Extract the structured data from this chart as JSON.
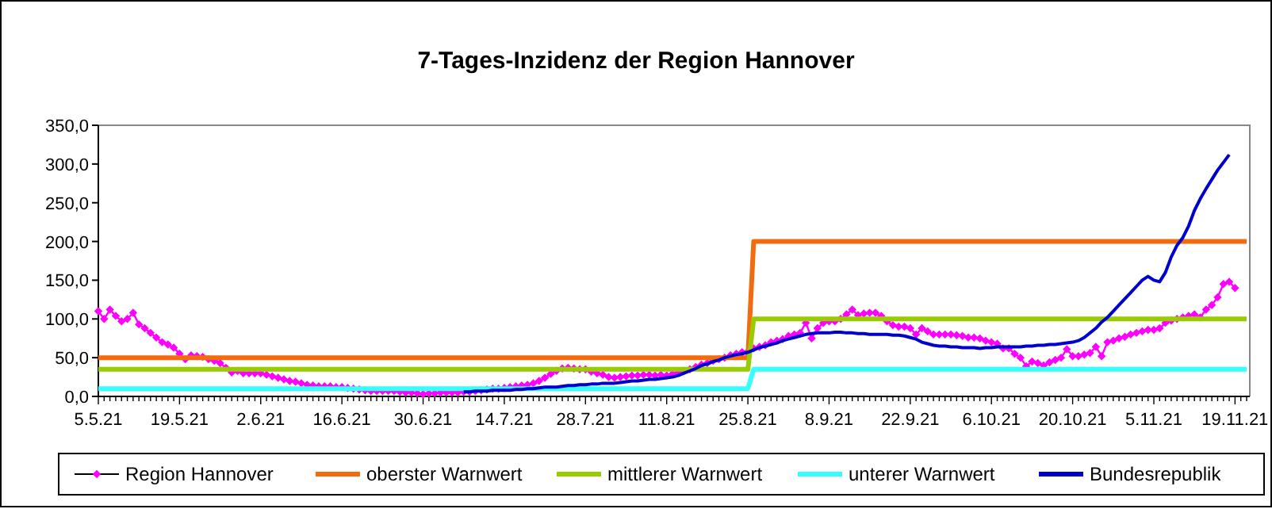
{
  "chart_data": {
    "type": "line",
    "title": "7-Tages-Inzidenz der Region Hannover",
    "categories": [
      "5.5.21",
      null,
      null,
      null,
      null,
      null,
      null,
      null,
      null,
      null,
      null,
      null,
      null,
      null,
      "19.5.21",
      null,
      null,
      null,
      null,
      null,
      null,
      null,
      null,
      null,
      null,
      null,
      null,
      null,
      "2.6.21",
      null,
      null,
      null,
      null,
      null,
      null,
      null,
      null,
      null,
      null,
      null,
      null,
      null,
      "16.6.21",
      null,
      null,
      null,
      null,
      null,
      null,
      null,
      null,
      null,
      null,
      null,
      null,
      null,
      "30.6.21",
      null,
      null,
      null,
      null,
      null,
      null,
      null,
      null,
      null,
      null,
      null,
      null,
      null,
      "14.7.21",
      null,
      null,
      null,
      null,
      null,
      null,
      null,
      null,
      null,
      null,
      null,
      null,
      null,
      "28.7.21",
      null,
      null,
      null,
      null,
      null,
      null,
      null,
      null,
      null,
      null,
      null,
      null,
      null,
      "11.8.21",
      null,
      null,
      null,
      null,
      null,
      null,
      null,
      null,
      null,
      null,
      null,
      null,
      null,
      "25.8.21",
      null,
      null,
      null,
      null,
      null,
      null,
      null,
      null,
      null,
      null,
      null,
      null,
      null,
      "8.9.21",
      null,
      null,
      null,
      null,
      null,
      null,
      null,
      null,
      null,
      null,
      null,
      null,
      null,
      "22.9.21",
      null,
      null,
      null,
      null,
      null,
      null,
      null,
      null,
      null,
      null,
      null,
      null,
      null,
      "6.10.21",
      null,
      null,
      null,
      null,
      null,
      null,
      null,
      null,
      null,
      null,
      null,
      null,
      null,
      "20.10.21",
      null,
      null,
      null,
      null,
      null,
      null,
      null,
      null,
      null,
      null,
      null,
      null,
      null,
      "5.11.21",
      null,
      null,
      null,
      null,
      null,
      null,
      null,
      null,
      null,
      null,
      null,
      null,
      null,
      "19.11.21",
      null,
      null
    ],
    "ylim": [
      0,
      350
    ],
    "yticks": [
      {
        "value": 0,
        "label": "0,0"
      },
      {
        "value": 50,
        "label": "50,0"
      },
      {
        "value": 100,
        "label": "100,0"
      },
      {
        "value": 150,
        "label": "150,0"
      },
      {
        "value": 200,
        "label": "200,0"
      },
      {
        "value": 250,
        "label": "250,0"
      },
      {
        "value": 300,
        "label": "300,0"
      },
      {
        "value": 350,
        "label": "350,0"
      }
    ],
    "grid": false,
    "legend": "bottom",
    "series": [
      {
        "name": "Region Hannover",
        "color": "#ff00ff",
        "marker": "diamond",
        "values": [
          110,
          100,
          112,
          104,
          97,
          100,
          108,
          93,
          88,
          82,
          76,
          70,
          67,
          63,
          55,
          48,
          53,
          52,
          51,
          48,
          46,
          43,
          37,
          31,
          33,
          30,
          30,
          30,
          30,
          28,
          26,
          24,
          22,
          20,
          19,
          17,
          15,
          14,
          13,
          13,
          13,
          12,
          12,
          11,
          10,
          9,
          8,
          7,
          7,
          7,
          7,
          7,
          6,
          5,
          5,
          4,
          3,
          4,
          4,
          5,
          5,
          5,
          5,
          6,
          6,
          7,
          8,
          9,
          10,
          10,
          11,
          12,
          13,
          14,
          15,
          17,
          20,
          24,
          29,
          33,
          36,
          37,
          36,
          35,
          35,
          32,
          30,
          28,
          25,
          24,
          25,
          26,
          27,
          27,
          28,
          28,
          27,
          28,
          27,
          29,
          31,
          33,
          35,
          38,
          41,
          43,
          46,
          48,
          50,
          53,
          55,
          57,
          58,
          62,
          64,
          66,
          70,
          72,
          74,
          78,
          80,
          82,
          95,
          75,
          88,
          95,
          97,
          97,
          100,
          106,
          112,
          105,
          107,
          108,
          108,
          104,
          97,
          92,
          90,
          90,
          88,
          80,
          88,
          84,
          80,
          80,
          80,
          80,
          79,
          78,
          76,
          76,
          75,
          72,
          70,
          68,
          62,
          62,
          55,
          50,
          39,
          45,
          43,
          40,
          44,
          47,
          50,
          61,
          52,
          52,
          54,
          56,
          64,
          52,
          70,
          72,
          75,
          77,
          80,
          82,
          84,
          86,
          86,
          88,
          95,
          98,
          100,
          102,
          104,
          106,
          102,
          112,
          118,
          128,
          145,
          148,
          140,
          null,
          null
        ]
      },
      {
        "name": "oberster Warnwert",
        "color": "#f26b0f",
        "values": [
          50,
          50,
          50,
          50,
          50,
          50,
          50,
          50,
          50,
          50,
          50,
          50,
          50,
          50,
          50,
          50,
          50,
          50,
          50,
          50,
          50,
          50,
          50,
          50,
          50,
          50,
          50,
          50,
          50,
          50,
          50,
          50,
          50,
          50,
          50,
          50,
          50,
          50,
          50,
          50,
          50,
          50,
          50,
          50,
          50,
          50,
          50,
          50,
          50,
          50,
          50,
          50,
          50,
          50,
          50,
          50,
          50,
          50,
          50,
          50,
          50,
          50,
          50,
          50,
          50,
          50,
          50,
          50,
          50,
          50,
          50,
          50,
          50,
          50,
          50,
          50,
          50,
          50,
          50,
          50,
          50,
          50,
          50,
          50,
          50,
          50,
          50,
          50,
          50,
          50,
          50,
          50,
          50,
          50,
          50,
          50,
          50,
          50,
          50,
          50,
          50,
          50,
          50,
          50,
          50,
          50,
          50,
          50,
          50,
          50,
          50,
          50,
          50,
          200,
          200,
          200,
          200,
          200,
          200,
          200,
          200,
          200,
          200,
          200,
          200,
          200,
          200,
          200,
          200,
          200,
          200,
          200,
          200,
          200,
          200,
          200,
          200,
          200,
          200,
          200,
          200,
          200,
          200,
          200,
          200,
          200,
          200,
          200,
          200,
          200,
          200,
          200,
          200,
          200,
          200,
          200,
          200,
          200,
          200,
          200,
          200,
          200,
          200,
          200,
          200,
          200,
          200,
          200,
          200,
          200,
          200,
          200,
          200,
          200,
          200,
          200,
          200,
          200,
          200,
          200,
          200,
          200,
          200,
          200,
          200,
          200,
          200,
          200,
          200,
          200,
          200,
          200,
          200,
          200,
          200,
          200,
          200,
          200,
          200
        ]
      },
      {
        "name": "mittlerer Warnwert",
        "color": "#99cc00",
        "values": [
          35,
          35,
          35,
          35,
          35,
          35,
          35,
          35,
          35,
          35,
          35,
          35,
          35,
          35,
          35,
          35,
          35,
          35,
          35,
          35,
          35,
          35,
          35,
          35,
          35,
          35,
          35,
          35,
          35,
          35,
          35,
          35,
          35,
          35,
          35,
          35,
          35,
          35,
          35,
          35,
          35,
          35,
          35,
          35,
          35,
          35,
          35,
          35,
          35,
          35,
          35,
          35,
          35,
          35,
          35,
          35,
          35,
          35,
          35,
          35,
          35,
          35,
          35,
          35,
          35,
          35,
          35,
          35,
          35,
          35,
          35,
          35,
          35,
          35,
          35,
          35,
          35,
          35,
          35,
          35,
          35,
          35,
          35,
          35,
          35,
          35,
          35,
          35,
          35,
          35,
          35,
          35,
          35,
          35,
          35,
          35,
          35,
          35,
          35,
          35,
          35,
          35,
          35,
          35,
          35,
          35,
          35,
          35,
          35,
          35,
          35,
          35,
          35,
          100,
          100,
          100,
          100,
          100,
          100,
          100,
          100,
          100,
          100,
          100,
          100,
          100,
          100,
          100,
          100,
          100,
          100,
          100,
          100,
          100,
          100,
          100,
          100,
          100,
          100,
          100,
          100,
          100,
          100,
          100,
          100,
          100,
          100,
          100,
          100,
          100,
          100,
          100,
          100,
          100,
          100,
          100,
          100,
          100,
          100,
          100,
          100,
          100,
          100,
          100,
          100,
          100,
          100,
          100,
          100,
          100,
          100,
          100,
          100,
          100,
          100,
          100,
          100,
          100,
          100,
          100,
          100,
          100,
          100,
          100,
          100,
          100,
          100,
          100,
          100,
          100,
          100,
          100,
          100,
          100,
          100,
          100,
          100,
          100,
          100
        ]
      },
      {
        "name": "unterer Warnwert",
        "color": "#33ffff",
        "values": [
          10,
          10,
          10,
          10,
          10,
          10,
          10,
          10,
          10,
          10,
          10,
          10,
          10,
          10,
          10,
          10,
          10,
          10,
          10,
          10,
          10,
          10,
          10,
          10,
          10,
          10,
          10,
          10,
          10,
          10,
          10,
          10,
          10,
          10,
          10,
          10,
          10,
          10,
          10,
          10,
          10,
          10,
          10,
          10,
          10,
          10,
          10,
          10,
          10,
          10,
          10,
          10,
          10,
          10,
          10,
          10,
          10,
          10,
          10,
          10,
          10,
          10,
          10,
          10,
          10,
          10,
          10,
          10,
          10,
          10,
          10,
          10,
          10,
          10,
          10,
          10,
          10,
          10,
          10,
          10,
          10,
          10,
          10,
          10,
          10,
          10,
          10,
          10,
          10,
          10,
          10,
          10,
          10,
          10,
          10,
          10,
          10,
          10,
          10,
          10,
          10,
          10,
          10,
          10,
          10,
          10,
          10,
          10,
          10,
          10,
          10,
          10,
          10,
          35,
          35,
          35,
          35,
          35,
          35,
          35,
          35,
          35,
          35,
          35,
          35,
          35,
          35,
          35,
          35,
          35,
          35,
          35,
          35,
          35,
          35,
          35,
          35,
          35,
          35,
          35,
          35,
          35,
          35,
          35,
          35,
          35,
          35,
          35,
          35,
          35,
          35,
          35,
          35,
          35,
          35,
          35,
          35,
          35,
          35,
          35,
          35,
          35,
          35,
          35,
          35,
          35,
          35,
          35,
          35,
          35,
          35,
          35,
          35,
          35,
          35,
          35,
          35,
          35,
          35,
          35,
          35,
          35,
          35,
          35,
          35,
          35,
          35,
          35,
          35,
          35,
          35,
          35,
          35,
          35,
          35,
          35,
          35,
          35,
          35
        ]
      },
      {
        "name": "Bundesrepublik",
        "color": "#0000cc",
        "values": [
          null,
          null,
          null,
          null,
          null,
          null,
          null,
          null,
          null,
          null,
          null,
          null,
          null,
          null,
          null,
          null,
          null,
          null,
          null,
          null,
          null,
          null,
          null,
          null,
          null,
          null,
          null,
          null,
          null,
          null,
          null,
          null,
          null,
          null,
          null,
          null,
          null,
          null,
          null,
          null,
          null,
          null,
          null,
          null,
          null,
          null,
          null,
          null,
          null,
          null,
          null,
          null,
          null,
          null,
          null,
          null,
          null,
          null,
          null,
          null,
          null,
          null,
          null,
          6,
          6,
          7,
          7,
          7,
          8,
          8,
          8,
          8,
          9,
          9,
          10,
          10,
          11,
          12,
          12,
          12,
          13,
          14,
          14,
          15,
          15,
          16,
          16,
          17,
          17,
          17,
          18,
          19,
          20,
          20,
          21,
          22,
          22,
          23,
          24,
          25,
          27,
          30,
          33,
          36,
          40,
          42,
          45,
          47,
          50,
          52,
          54,
          55,
          57,
          60,
          63,
          65,
          67,
          69,
          72,
          74,
          76,
          78,
          80,
          81,
          82,
          82,
          82,
          83,
          83,
          82,
          82,
          81,
          81,
          80,
          80,
          80,
          80,
          79,
          79,
          78,
          76,
          74,
          70,
          68,
          66,
          65,
          65,
          64,
          64,
          63,
          63,
          63,
          62,
          63,
          63,
          64,
          64,
          64,
          64,
          64,
          65,
          65,
          66,
          66,
          67,
          67,
          68,
          69,
          70,
          72,
          76,
          82,
          88,
          96,
          102,
          110,
          118,
          126,
          134,
          142,
          150,
          155,
          150,
          148,
          160,
          180,
          195,
          205,
          220,
          240,
          255,
          268,
          280,
          292,
          302,
          312,
          null,
          null,
          null
        ]
      }
    ]
  }
}
